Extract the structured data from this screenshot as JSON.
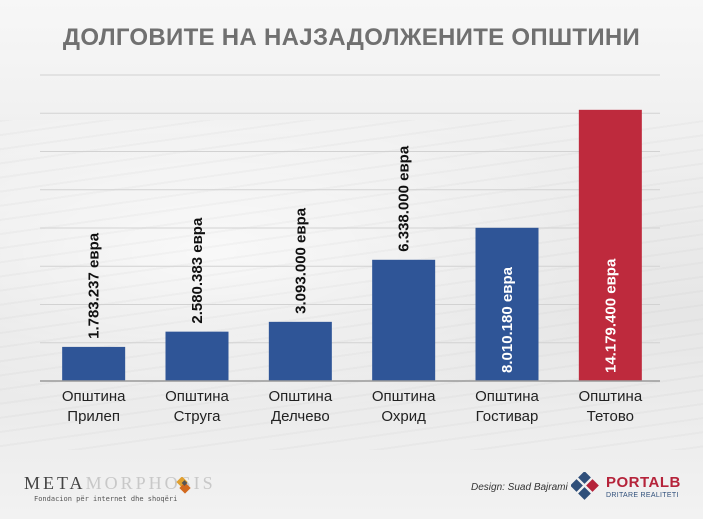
{
  "title": "ДОЛГОВИТЕ НА НАЈЗАДОЛЖЕНИТЕ ОПШТИНИ",
  "chart_data": {
    "type": "bar",
    "title": "ДОЛГОВИТЕ НА НАЈЗАДОЛЖЕНИТЕ ОПШТИНИ",
    "xlabel": "",
    "ylabel": "",
    "ylim": [
      0,
      16000000
    ],
    "grid": true,
    "categories": [
      [
        "Општина",
        "Прилеп"
      ],
      [
        "Општина",
        "Струга"
      ],
      [
        "Општина",
        "Делчево"
      ],
      [
        "Општина",
        "Охрид"
      ],
      [
        "Општина",
        "Гостивар"
      ],
      [
        "Општина",
        "Тетово"
      ]
    ],
    "values": [
      1783237,
      2580383,
      3093000,
      6338000,
      8010180,
      14179400
    ],
    "data_labels": [
      "1.783.237 евра",
      "2.580.383 евра",
      "3.093.000 евра",
      "6.338.000 евра",
      "8.010.180 евра",
      "14.179.400 евра"
    ],
    "colors": [
      "#2f5597",
      "#2f5597",
      "#2f5597",
      "#2f5597",
      "#2f5597",
      "#be2a3d"
    ]
  },
  "footer": {
    "logo_meta_dark": "META",
    "logo_meta_light": "MORPHOSIS",
    "logo_meta_sub": "Fondacion për internet dhe shoqëri",
    "credit": "Design: Suad Bajrami",
    "portalb_name": "PORTALB",
    "portalb_tagline": "DRITARE REALITETI"
  }
}
